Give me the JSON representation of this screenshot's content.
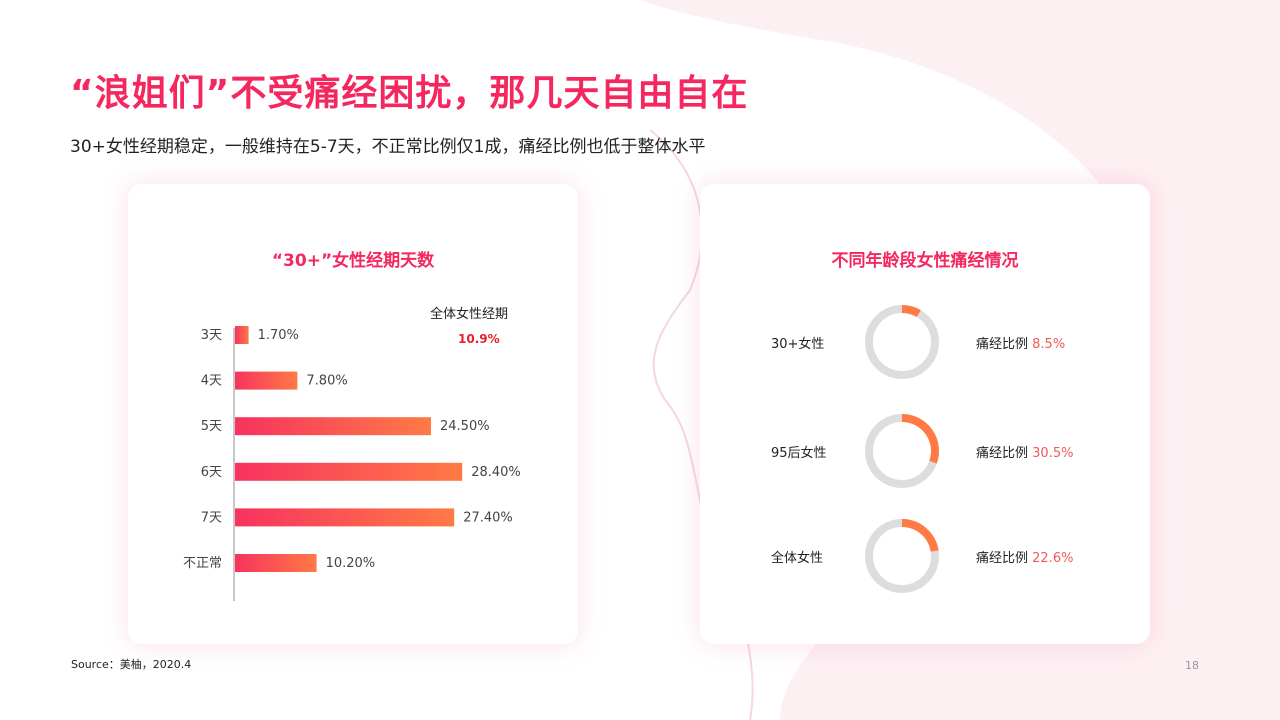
{
  "slide": {
    "title": "“浪姐们”不受痛经困扰，那几天自由自在",
    "subtitle": "30+女性经期稳定，一般维持在5-7天，不正常比例仅1成，痛经比例也低于整体水平",
    "source": "Source：美柚，2020.4",
    "page_number": "18"
  },
  "colors": {
    "accent": "#f4275e",
    "bar_gradient_start": "#f7335f",
    "bar_gradient_end": "#ff7a45",
    "donut_track": "#dddddd",
    "donut_arc": "#ff7a45",
    "highlight_value": "#e8202a"
  },
  "chart_data": [
    {
      "type": "bar",
      "orientation": "horizontal",
      "title": "“30+”女性经期天数",
      "categories": [
        "3天",
        "4天",
        "5天",
        "6天",
        "7天",
        "不正常"
      ],
      "values": [
        1.7,
        7.8,
        24.5,
        28.4,
        27.4,
        10.2
      ],
      "value_labels": [
        "1.70%",
        "7.80%",
        "24.50%",
        "28.40%",
        "27.40%",
        "10.20%"
      ],
      "unit": "%",
      "annotation": {
        "label": "全体女性经期",
        "value": "10.9%"
      }
    },
    {
      "type": "pie",
      "variant": "donut",
      "title": "不同年龄段女性痛经情况",
      "rate_label": "痛经比例",
      "series": [
        {
          "name": "30+女性",
          "value": 8.5,
          "label": "8.5%"
        },
        {
          "name": "95后女性",
          "value": 30.5,
          "label": "30.5%"
        },
        {
          "name": "全体女性",
          "value": 22.6,
          "label": "22.6%"
        }
      ]
    }
  ]
}
